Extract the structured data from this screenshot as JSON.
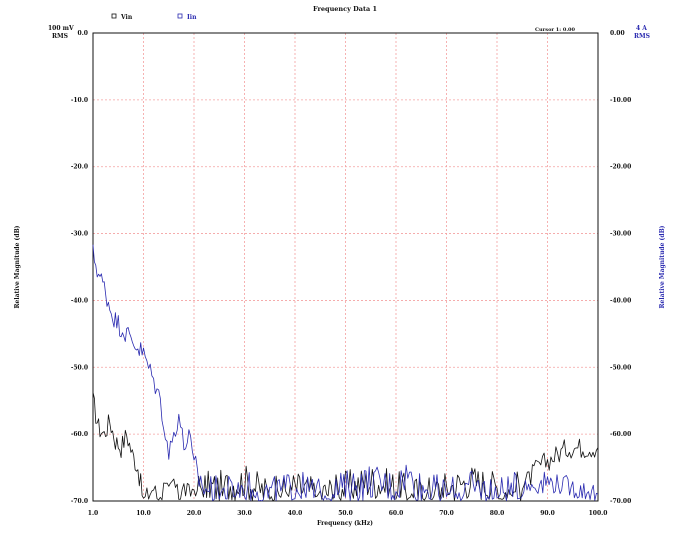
{
  "chart_data": {
    "type": "line",
    "title": "Frequency Data 1",
    "xlabel": "Frequency (kHz)",
    "ylabel_left": "Relative Magnitude (dB)",
    "ylabel_right": "Relative Magnitude (dB)",
    "left_unit": [
      "100 mV",
      "RMS"
    ],
    "right_unit": [
      "4 A",
      "RMS"
    ],
    "corner_label": "Cursor 1: 0.00",
    "x_ticks": [
      "1.0",
      "10.0",
      "20.0",
      "30.0",
      "40.0",
      "50.0",
      "60.0",
      "70.0",
      "80.0",
      "90.0",
      "100.0"
    ],
    "y_ticks_left": [
      "0.0",
      "-10.0",
      "-20.0",
      "-30.0",
      "-40.0",
      "-50.0",
      "-60.0",
      "-70.0"
    ],
    "y_ticks_right": [
      "0.00",
      "-10.00",
      "-20.00",
      "-30.00",
      "-40.00",
      "-50.00",
      "-60.00",
      "-70.00"
    ],
    "xlim": [
      1,
      100
    ],
    "ylim": [
      -70,
      0
    ],
    "grid": true,
    "legend_position": "top-left",
    "colors": {
      "grid": "#f4a0a0",
      "vin": "#111111",
      "iin": "#2a2ab0"
    },
    "series": [
      {
        "name": "Vin",
        "color": "#111111",
        "x": [
          1,
          2,
          3,
          4,
          5,
          6,
          7,
          8,
          9,
          10,
          11,
          12,
          13,
          14,
          15,
          16,
          17,
          18,
          19,
          20,
          25,
          30,
          35,
          40,
          45,
          50,
          55,
          60,
          65,
          70,
          75,
          80,
          82,
          84,
          86,
          88,
          90,
          92,
          94,
          96,
          98,
          100
        ],
        "y": [
          -55,
          -59,
          -60,
          -58,
          -61,
          -62,
          -60,
          -63,
          -65,
          -70,
          -69,
          -68,
          -70,
          -68,
          -69,
          -67,
          -70,
          -68,
          -69,
          -68,
          -68,
          -67,
          -69,
          -68,
          -69,
          -68,
          -67,
          -68,
          -69,
          -68,
          -67,
          -68,
          -69,
          -68,
          -67,
          -65,
          -64,
          -63,
          -62,
          -62,
          -62,
          -62
        ]
      },
      {
        "name": "Iin",
        "color": "#2a2ab0",
        "x": [
          1,
          2,
          3,
          4,
          5,
          6,
          7,
          8,
          9,
          10,
          11,
          12,
          13,
          14,
          15,
          16,
          17,
          18,
          19,
          20,
          22,
          25,
          30,
          35,
          40,
          45,
          50,
          55,
          60,
          62,
          65,
          70,
          75,
          80,
          85,
          90,
          95,
          100
        ],
        "y": [
          -33,
          -36,
          -38,
          -41,
          -43,
          -44,
          -45,
          -46,
          -47,
          -48,
          -50,
          -52,
          -54,
          -58,
          -63,
          -60,
          -57,
          -62,
          -60,
          -65,
          -68,
          -69,
          -68,
          -69,
          -68,
          -69,
          -68,
          -67,
          -68,
          -66,
          -68,
          -69,
          -68,
          -69,
          -68,
          -67,
          -68,
          -69
        ]
      }
    ]
  }
}
